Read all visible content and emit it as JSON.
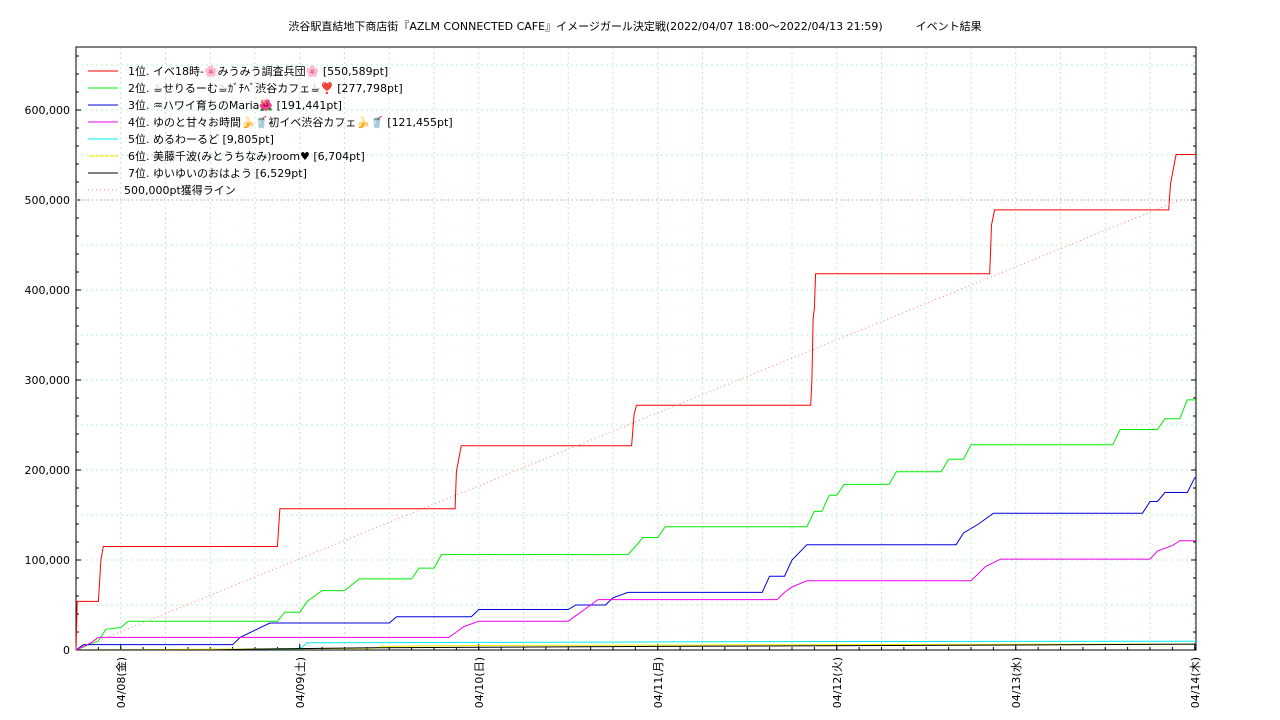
{
  "chart_data": {
    "type": "line",
    "title": "渋谷駅直結地下商店街『AZLM CONNECTED CAFE』イメージガール決定戦(2022/04/07 18:00～2022/04/13 21:59)　　　イベント結果",
    "ylim": [
      0,
      670000
    ],
    "y_ticks": [
      {
        "value": 0,
        "label": "0"
      },
      {
        "value": 100000,
        "label": "100,000"
      },
      {
        "value": 200000,
        "label": "200,000"
      },
      {
        "value": 300000,
        "label": "300,000"
      },
      {
        "value": 400000,
        "label": "400,000"
      },
      {
        "value": 500000,
        "label": "500,000"
      },
      {
        "value": 600000,
        "label": "600,000"
      }
    ],
    "x_range": [
      "2022-04-07 18:00",
      "2022-04-14 00:10"
    ],
    "x_ticks": [
      {
        "t": "2022-04-08 00:00",
        "label": "04/08(金)"
      },
      {
        "t": "2022-04-09 00:00",
        "label": "04/09(土)"
      },
      {
        "t": "2022-04-10 00:00",
        "label": "04/10(日)"
      },
      {
        "t": "2022-04-11 00:00",
        "label": "04/11(月)"
      },
      {
        "t": "2022-04-12 00:00",
        "label": "04/12(火)"
      },
      {
        "t": "2022-04-13 00:00",
        "label": "04/13(水)"
      },
      {
        "t": "2022-04-14 00:00",
        "label": "04/14(木)"
      }
    ],
    "grid": true,
    "legend_position": "top-left",
    "series": [
      {
        "name": "1位. イベ18時-🌸みうみう調査兵団🌸 [550,589pt]",
        "color": "#ff0000",
        "points": [
          [
            "2022-04-07 18:00",
            0
          ],
          [
            "2022-04-07 18:10",
            54000
          ],
          [
            "2022-04-07 19:00",
            54000
          ],
          [
            "2022-04-07 21:00",
            54000
          ],
          [
            "2022-04-07 21:20",
            100000
          ],
          [
            "2022-04-07 21:40",
            115000
          ],
          [
            "2022-04-08 21:00",
            115000
          ],
          [
            "2022-04-08 21:20",
            157000
          ],
          [
            "2022-04-09 20:50",
            157000
          ],
          [
            "2022-04-09 21:00",
            198000
          ],
          [
            "2022-04-09 21:20",
            213000
          ],
          [
            "2022-04-09 21:40",
            227000
          ],
          [
            "2022-04-10 20:30",
            227000
          ],
          [
            "2022-04-10 20:50",
            262000
          ],
          [
            "2022-04-10 21:10",
            272000
          ],
          [
            "2022-04-11 20:30",
            272000
          ],
          [
            "2022-04-11 20:40",
            300000
          ],
          [
            "2022-04-11 20:50",
            368000
          ],
          [
            "2022-04-11 21:00",
            380000
          ],
          [
            "2022-04-11 21:10",
            418000
          ],
          [
            "2022-04-12 20:30",
            418000
          ],
          [
            "2022-04-12 20:45",
            472000
          ],
          [
            "2022-04-12 21:10",
            489000
          ],
          [
            "2022-04-13 20:30",
            489000
          ],
          [
            "2022-04-13 20:45",
            518000
          ],
          [
            "2022-04-13 21:30",
            550589
          ],
          [
            "2022-04-14 00:10",
            550589
          ]
        ]
      },
      {
        "name": "2位. ☕せりるーむ☕ｶﾞﾁﾍﾞ渋谷カフェ☕❣️ [277,798pt]",
        "color": "#00ee00",
        "points": [
          [
            "2022-04-07 18:00",
            0
          ],
          [
            "2022-04-07 21:00",
            10000
          ],
          [
            "2022-04-07 22:00",
            23000
          ],
          [
            "2022-04-08 00:00",
            25000
          ],
          [
            "2022-04-08 01:00",
            32000
          ],
          [
            "2022-04-08 21:00",
            32000
          ],
          [
            "2022-04-08 22:00",
            42000
          ],
          [
            "2022-04-09 00:00",
            42000
          ],
          [
            "2022-04-09 01:00",
            54000
          ],
          [
            "2022-04-09 03:00",
            66000
          ],
          [
            "2022-04-09 06:00",
            66000
          ],
          [
            "2022-04-09 08:00",
            79000
          ],
          [
            "2022-04-09 15:00",
            79000
          ],
          [
            "2022-04-09 16:00",
            91000
          ],
          [
            "2022-04-09 18:00",
            91000
          ],
          [
            "2022-04-09 19:00",
            106000
          ],
          [
            "2022-04-10 20:00",
            106000
          ],
          [
            "2022-04-10 21:00",
            115000
          ],
          [
            "2022-04-10 22:00",
            125000
          ],
          [
            "2022-04-11 00:00",
            125000
          ],
          [
            "2022-04-11 01:00",
            137000
          ],
          [
            "2022-04-11 20:00",
            137000
          ],
          [
            "2022-04-11 21:00",
            154000
          ],
          [
            "2022-04-11 22:00",
            154000
          ],
          [
            "2022-04-11 23:00",
            172000
          ],
          [
            "2022-04-12 00:00",
            172000
          ],
          [
            "2022-04-12 01:00",
            184000
          ],
          [
            "2022-04-12 07:00",
            184000
          ],
          [
            "2022-04-12 08:00",
            198000
          ],
          [
            "2022-04-12 14:00",
            198000
          ],
          [
            "2022-04-12 15:00",
            212000
          ],
          [
            "2022-04-12 17:00",
            212000
          ],
          [
            "2022-04-12 18:00",
            228000
          ],
          [
            "2022-04-13 13:00",
            228000
          ],
          [
            "2022-04-13 14:00",
            245000
          ],
          [
            "2022-04-13 19:00",
            245000
          ],
          [
            "2022-04-13 20:00",
            257000
          ],
          [
            "2022-04-13 22:00",
            257000
          ],
          [
            "2022-04-13 23:00",
            278000
          ],
          [
            "2022-04-14 00:10",
            277798
          ]
        ]
      },
      {
        "name": "3位. ♒ハワイ育ちのMaria🌺 [191,441pt]",
        "color": "#0000dd",
        "points": [
          [
            "2022-04-07 18:00",
            0
          ],
          [
            "2022-04-07 19:00",
            6000
          ],
          [
            "2022-04-08 15:00",
            6000
          ],
          [
            "2022-04-08 16:00",
            14000
          ],
          [
            "2022-04-08 18:00",
            22000
          ],
          [
            "2022-04-08 20:00",
            30000
          ],
          [
            "2022-04-09 12:00",
            30000
          ],
          [
            "2022-04-09 13:00",
            37000
          ],
          [
            "2022-04-09 23:00",
            37000
          ],
          [
            "2022-04-10 00:00",
            45000
          ],
          [
            "2022-04-10 12:00",
            45000
          ],
          [
            "2022-04-10 13:00",
            50000
          ],
          [
            "2022-04-10 17:00",
            50000
          ],
          [
            "2022-04-10 18:00",
            58000
          ],
          [
            "2022-04-10 20:00",
            64000
          ],
          [
            "2022-04-11 14:00",
            64000
          ],
          [
            "2022-04-11 15:00",
            82000
          ],
          [
            "2022-04-11 17:00",
            82000
          ],
          [
            "2022-04-11 18:00",
            100000
          ],
          [
            "2022-04-11 20:00",
            117000
          ],
          [
            "2022-04-12 16:00",
            117000
          ],
          [
            "2022-04-12 17:00",
            130000
          ],
          [
            "2022-04-12 19:00",
            140000
          ],
          [
            "2022-04-12 21:00",
            152000
          ],
          [
            "2022-04-13 17:00",
            152000
          ],
          [
            "2022-04-13 18:00",
            165000
          ],
          [
            "2022-04-13 19:00",
            165000
          ],
          [
            "2022-04-13 20:00",
            175000
          ],
          [
            "2022-04-13 23:00",
            175000
          ],
          [
            "2022-04-14 00:00",
            191441
          ],
          [
            "2022-04-14 00:10",
            191441
          ]
        ]
      },
      {
        "name": "4位. ゆのと甘々お時間🍌🥤初イベ渋谷カフェ🍌🥤 [121,455pt]",
        "color": "#ee00ee",
        "points": [
          [
            "2022-04-07 18:00",
            0
          ],
          [
            "2022-04-07 20:00",
            8000
          ],
          [
            "2022-04-07 21:00",
            14000
          ],
          [
            "2022-04-09 20:00",
            14000
          ],
          [
            "2022-04-09 21:00",
            20000
          ],
          [
            "2022-04-09 22:00",
            26000
          ],
          [
            "2022-04-10 00:00",
            32000
          ],
          [
            "2022-04-10 12:00",
            32000
          ],
          [
            "2022-04-10 13:00",
            38000
          ],
          [
            "2022-04-10 14:00",
            44000
          ],
          [
            "2022-04-10 16:00",
            56000
          ],
          [
            "2022-04-11 16:00",
            56000
          ],
          [
            "2022-04-11 17:00",
            64000
          ],
          [
            "2022-04-11 18:00",
            70000
          ],
          [
            "2022-04-11 20:00",
            77000
          ],
          [
            "2022-04-12 18:00",
            77000
          ],
          [
            "2022-04-12 19:00",
            85000
          ],
          [
            "2022-04-12 20:00",
            93000
          ],
          [
            "2022-04-12 22:00",
            101000
          ],
          [
            "2022-04-13 18:00",
            101000
          ],
          [
            "2022-04-13 19:00",
            110000
          ],
          [
            "2022-04-13 21:00",
            116000
          ],
          [
            "2022-04-13 22:00",
            121455
          ],
          [
            "2022-04-14 00:10",
            121455
          ]
        ]
      },
      {
        "name": "5位. めるわーるど [9,805pt]",
        "color": "#00eeee",
        "points": [
          [
            "2022-04-07 18:00",
            0
          ],
          [
            "2022-04-09 00:00",
            1000
          ],
          [
            "2022-04-09 01:00",
            8000
          ],
          [
            "2022-04-10 00:00",
            8500
          ],
          [
            "2022-04-11 00:00",
            9000
          ],
          [
            "2022-04-12 00:00",
            9500
          ],
          [
            "2022-04-14 00:10",
            9805
          ]
        ]
      },
      {
        "name": "6位. 美藤千波(みとうちなみ)room♥ [6,704pt]",
        "color": "#eeee00",
        "points": [
          [
            "2022-04-07 18:00",
            0
          ],
          [
            "2022-04-09 10:00",
            2000
          ],
          [
            "2022-04-09 11:00",
            4000
          ],
          [
            "2022-04-10 00:00",
            5000
          ],
          [
            "2022-04-12 00:00",
            6000
          ],
          [
            "2022-04-14 00:10",
            6704
          ]
        ]
      },
      {
        "name": "7位. ゆいゆいのおはよう [6,529pt]",
        "color": "#000000",
        "points": [
          [
            "2022-04-07 18:00",
            0
          ],
          [
            "2022-04-08 12:00",
            0
          ],
          [
            "2022-04-08 18:00",
            1000
          ],
          [
            "2022-04-09 10:00",
            2500
          ],
          [
            "2022-04-11 00:00",
            4000
          ],
          [
            "2022-04-13 00:00",
            5500
          ],
          [
            "2022-04-14 00:10",
            6529
          ]
        ]
      },
      {
        "name": "500,000pt獲得ライン",
        "color": "#ff8080",
        "dotted": true,
        "points": [
          [
            "2022-04-07 18:00",
            0
          ],
          [
            "2022-04-13 22:00",
            500000
          ]
        ]
      }
    ],
    "reference_line": {
      "value": 500000,
      "color": "#ff8080"
    }
  }
}
